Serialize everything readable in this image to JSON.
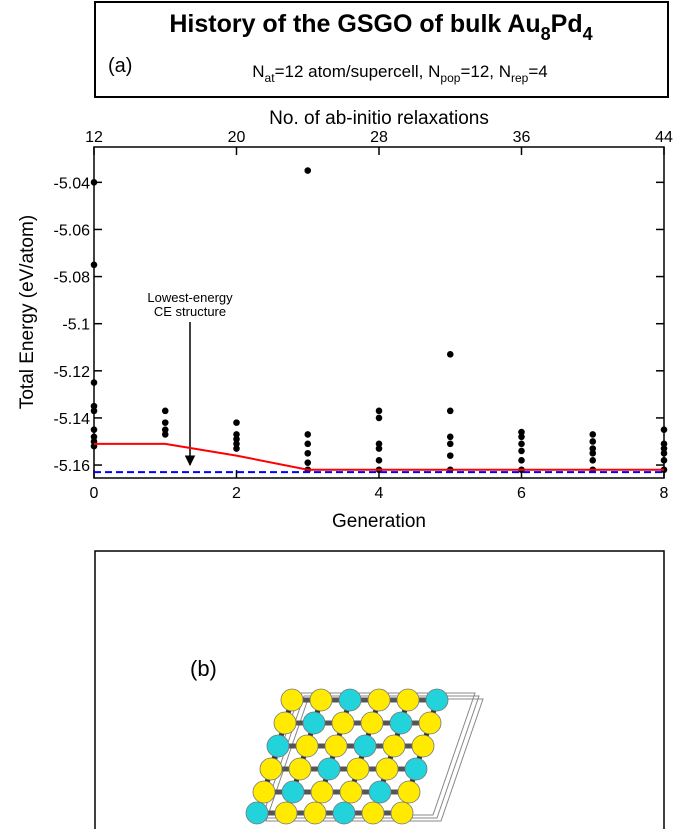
{
  "chart_data": {
    "type": "scatter",
    "title": [
      "History of the GSGO of bulk Au",
      "8",
      "Pd",
      "4"
    ],
    "subtitle": [
      "N",
      "at",
      "=12 atom/supercell, N",
      "pop",
      "=12, N",
      "rep",
      "=4"
    ],
    "panel_a": "(a)",
    "panel_b": "(b)",
    "xlabel": "Generation",
    "x2label": "No. of ab-initio relaxations",
    "ylabel": "Total Energy (eV/atom)",
    "xlim": [
      0,
      8
    ],
    "xticks": [
      0,
      2,
      4,
      6,
      8
    ],
    "x2lim": [
      12,
      44
    ],
    "x2ticks": [
      12,
      20,
      28,
      36,
      44
    ],
    "ylim": [
      -5.1655,
      -5.025
    ],
    "yticks": [
      -5.04,
      -5.06,
      -5.08,
      -5.1,
      -5.12,
      -5.14,
      -5.16
    ],
    "annotation": [
      "Lowest-energy",
      "CE structure"
    ],
    "series": [
      {
        "type": "scatter",
        "color": "#000000",
        "x": [
          0,
          0,
          0,
          0,
          0,
          0,
          0,
          0,
          0,
          1,
          1,
          1,
          1,
          2,
          2,
          2,
          2,
          2,
          3,
          3,
          3,
          3,
          3,
          3,
          4,
          4,
          4,
          4,
          4,
          4,
          5,
          5,
          5,
          5,
          5,
          5,
          6,
          6,
          6,
          6,
          6,
          6,
          7,
          7,
          7,
          7,
          7,
          7,
          8,
          8,
          8,
          8,
          8,
          8
        ],
        "values": [
          -5.04,
          -5.075,
          -5.125,
          -5.135,
          -5.137,
          -5.145,
          -5.148,
          -5.15,
          -5.152,
          -5.137,
          -5.142,
          -5.145,
          -5.147,
          -5.142,
          -5.147,
          -5.149,
          -5.151,
          -5.153,
          -5.035,
          -5.147,
          -5.151,
          -5.155,
          -5.159,
          -5.162,
          -5.137,
          -5.14,
          -5.151,
          -5.153,
          -5.158,
          -5.162,
          -5.113,
          -5.137,
          -5.148,
          -5.151,
          -5.156,
          -5.162,
          -5.146,
          -5.148,
          -5.151,
          -5.154,
          -5.158,
          -5.162,
          -5.147,
          -5.15,
          -5.153,
          -5.155,
          -5.158,
          -5.162,
          -5.145,
          -5.151,
          -5.153,
          -5.155,
          -5.158,
          -5.162
        ]
      },
      {
        "type": "line",
        "color": "#ff0000",
        "x": [
          0,
          1,
          2,
          3,
          8
        ],
        "values": [
          -5.151,
          -5.151,
          -5.156,
          -5.162,
          -5.162
        ]
      },
      {
        "type": "line",
        "color": "#0000ff",
        "dashed": true,
        "x": [
          0,
          8
        ],
        "values": [
          -5.163,
          -5.163
        ]
      }
    ]
  }
}
